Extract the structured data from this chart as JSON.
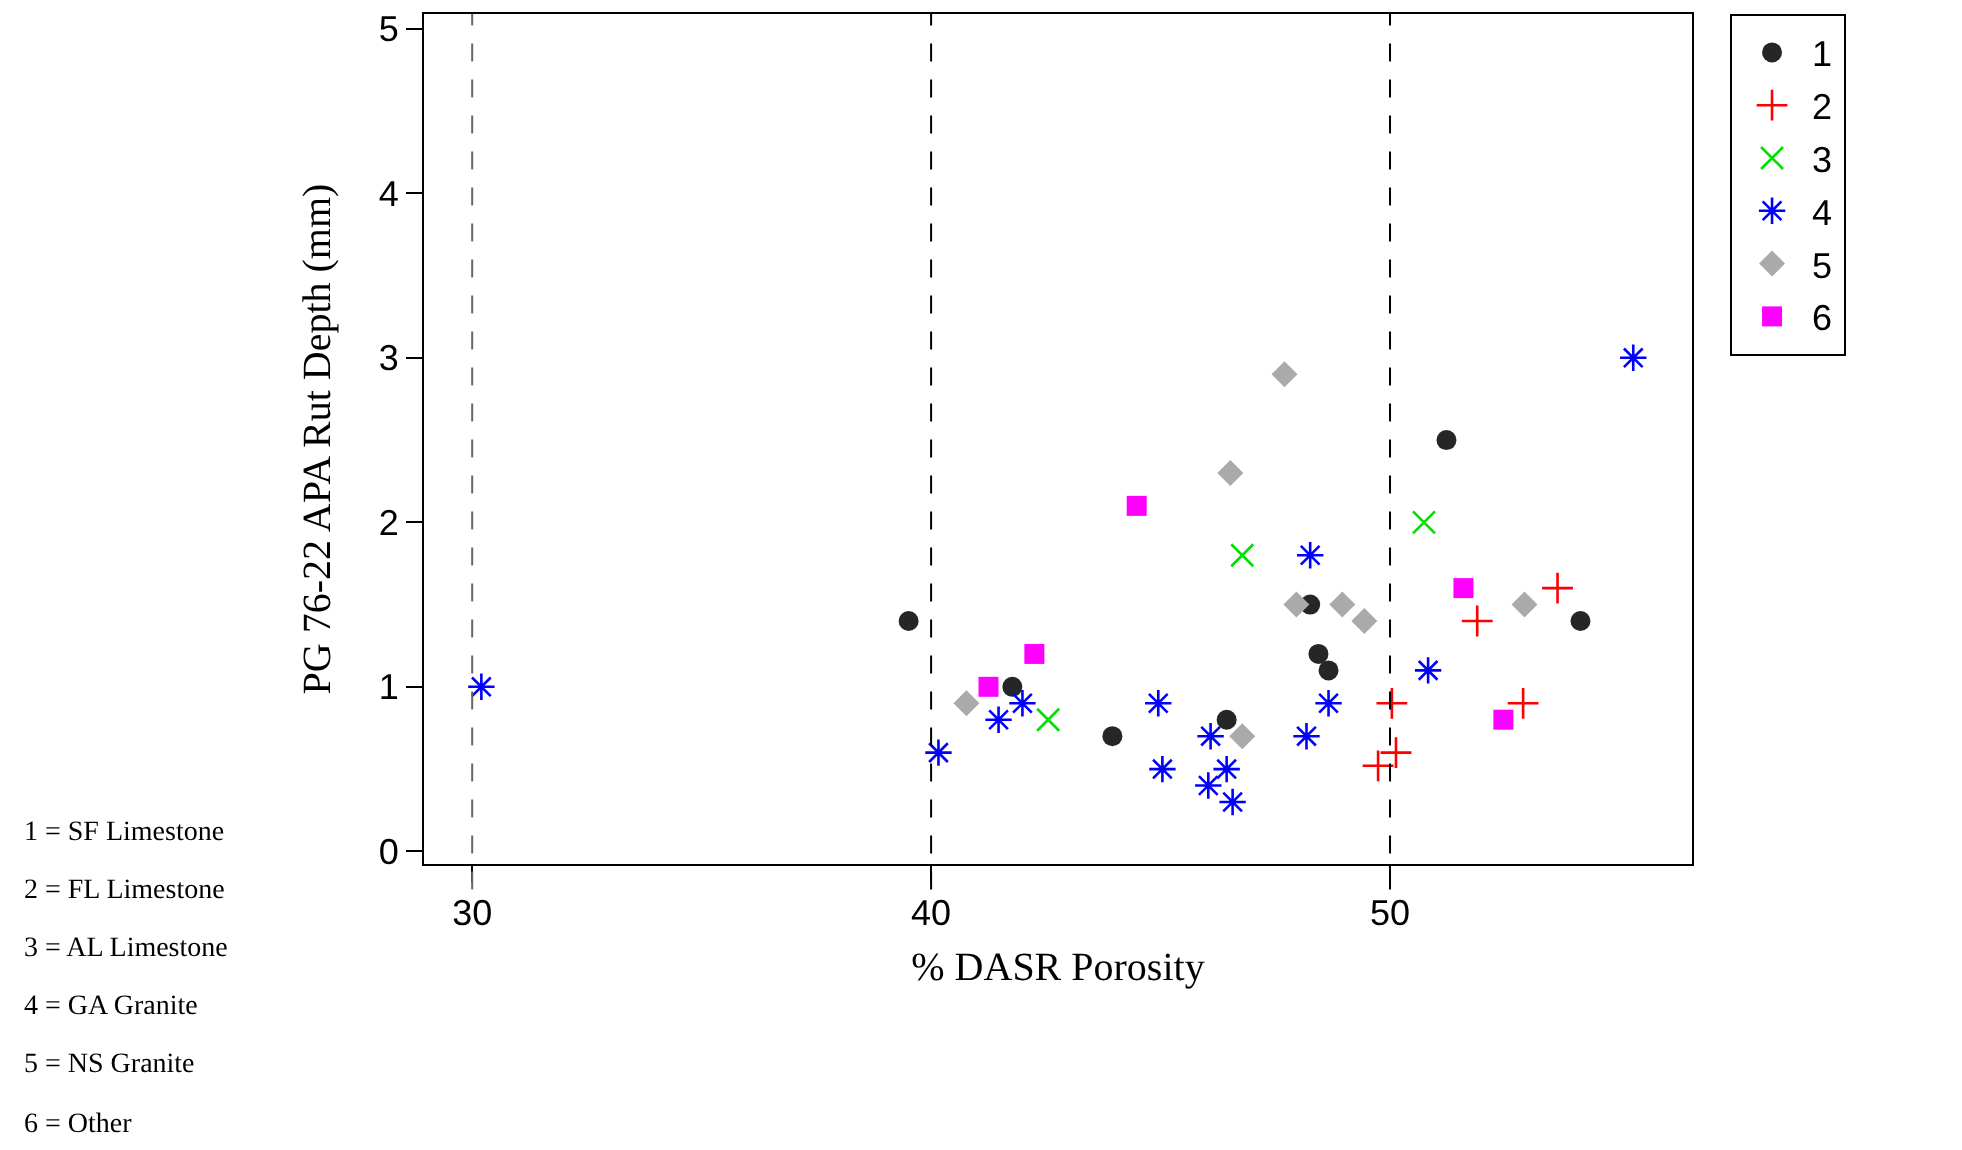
{
  "chart_data": {
    "type": "scatter",
    "xlabel": "% DASR Porosity",
    "ylabel": "PG 76-22 APA Rut Depth (mm)",
    "xlim": [
      28.95,
      56.58
    ],
    "xticks": [
      30,
      40,
      50
    ],
    "ylim": [
      -0.077,
      5.09
    ],
    "yticks": [
      0,
      1,
      2,
      3,
      4,
      5
    ],
    "legend": "top right",
    "series": [
      {
        "name": "1",
        "color": "#262626",
        "marker": "circle",
        "x": [
          39.51,
          41.77,
          43.95,
          46.44,
          48.26,
          48.44,
          48.66,
          51.23,
          54.15
        ],
        "values": [
          1.4,
          1.0,
          0.7,
          0.8,
          1.5,
          1.2,
          1.1,
          2.5,
          1.4
        ]
      },
      {
        "name": "2",
        "color": "#ff0000",
        "marker": "cross",
        "x": [
          49.74,
          50.13,
          50.04,
          51.9,
          52.9,
          53.65
        ],
        "values": [
          0.52,
          0.6,
          0.9,
          1.4,
          0.9,
          1.6
        ]
      },
      {
        "name": "3",
        "color": "#00e000",
        "marker": "x",
        "x": [
          42.55,
          46.78,
          50.74
        ],
        "values": [
          0.8,
          1.8,
          2.0
        ]
      },
      {
        "name": "4",
        "color": "#0000ff",
        "x": [
          30.2,
          40.16,
          41.47,
          41.99,
          44.95,
          45.04,
          46.09,
          46.04,
          46.44,
          46.57,
          48.18,
          48.26,
          48.66,
          50.83,
          55.3
        ],
        "values": [
          1.0,
          0.6,
          0.8,
          0.9,
          0.9,
          0.5,
          0.7,
          0.4,
          0.5,
          0.3,
          0.7,
          1.8,
          0.9,
          1.1,
          3.0
        ]
      },
      {
        "name": "5",
        "color": "#aaaaaa",
        "marker": "diamond",
        "x": [
          40.77,
          46.78,
          46.52,
          47.7,
          47.96,
          48.96,
          49.44,
          52.93
        ],
        "values": [
          0.9,
          0.7,
          2.3,
          2.9,
          1.5,
          1.5,
          1.4,
          1.5
        ]
      },
      {
        "name": "6",
        "color": "#ff00ff",
        "marker": "square",
        "x": [
          41.25,
          42.25,
          44.48,
          51.6,
          52.47
        ],
        "values": [
          1.0,
          1.2,
          2.1,
          1.6,
          0.8
        ]
      }
    ],
    "ref_lines": [
      {
        "axis": "x",
        "value": 30,
        "color": "#666666",
        "line_style": "dashed"
      },
      {
        "axis": "x",
        "value": 40,
        "color": "#000000",
        "line_style": "dashed"
      },
      {
        "axis": "x",
        "value": 50,
        "color": "#000000",
        "line_style": "dashed"
      }
    ],
    "annotations": [
      "1 = SF Limestone",
      "2 = FL Limestone",
      "3 = AL Limestone",
      "4 = GA Granite",
      "5 = NS Granite",
      "6 = Other"
    ]
  }
}
